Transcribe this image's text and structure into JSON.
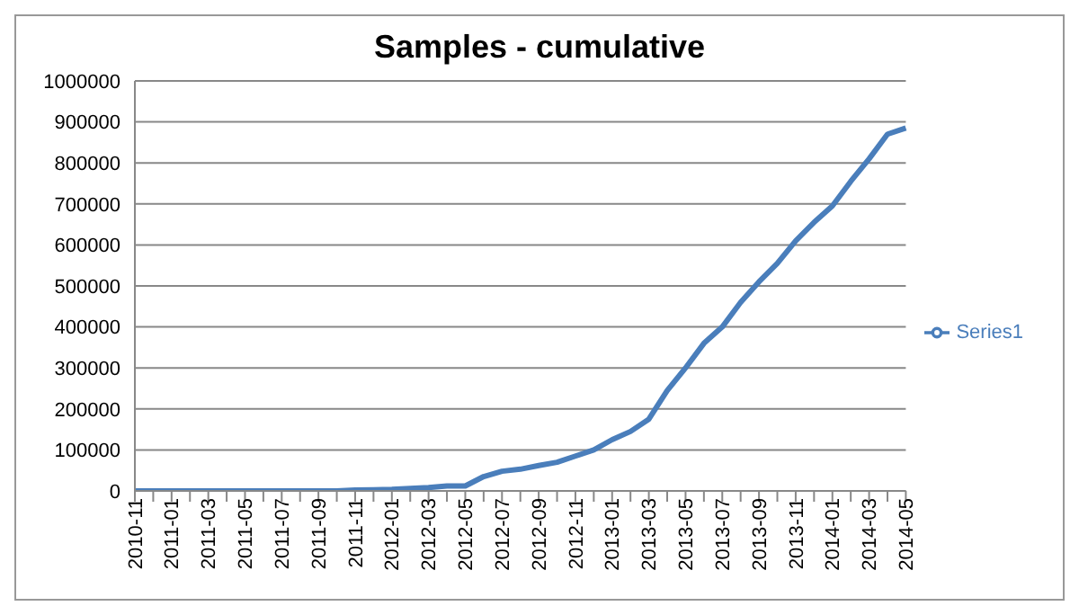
{
  "chart_data": {
    "type": "line",
    "title": "Samples - cumulative",
    "categories": [
      "2010-11",
      null,
      "2011-01",
      null,
      "2011-03",
      null,
      "2011-05",
      null,
      "2011-07",
      null,
      "2011-09",
      null,
      "2011-11",
      null,
      "2012-01",
      null,
      "2012-03",
      null,
      "2012-05",
      null,
      "2012-07",
      null,
      "2012-09",
      null,
      "2012-11",
      null,
      "2013-01",
      null,
      "2013-03",
      null,
      "2013-05",
      null,
      "2013-07",
      null,
      "2013-09",
      null,
      "2013-11",
      null,
      "2014-01",
      null,
      "2014-03",
      null,
      "2014-05"
    ],
    "series": [
      {
        "name": "Series1",
        "color": "#4a7ebb",
        "values": [
          0,
          0,
          0,
          0,
          0,
          0,
          0,
          0,
          0,
          0,
          0,
          0,
          2000,
          3000,
          4000,
          6000,
          8000,
          12000,
          12000,
          35000,
          48000,
          53000,
          62000,
          70000,
          85000,
          100000,
          125000,
          145000,
          175000,
          245000,
          300000,
          360000,
          400000,
          460000,
          510000,
          555000,
          610000,
          655000,
          695000,
          755000,
          810000,
          870000,
          885000
        ]
      }
    ],
    "ylim": [
      0,
      1000000
    ],
    "yticks": [
      0,
      100000,
      200000,
      300000,
      400000,
      500000,
      600000,
      700000,
      800000,
      900000,
      1000000
    ],
    "grid": "y",
    "legend": "right",
    "marker": "none",
    "line_style": "solid"
  }
}
